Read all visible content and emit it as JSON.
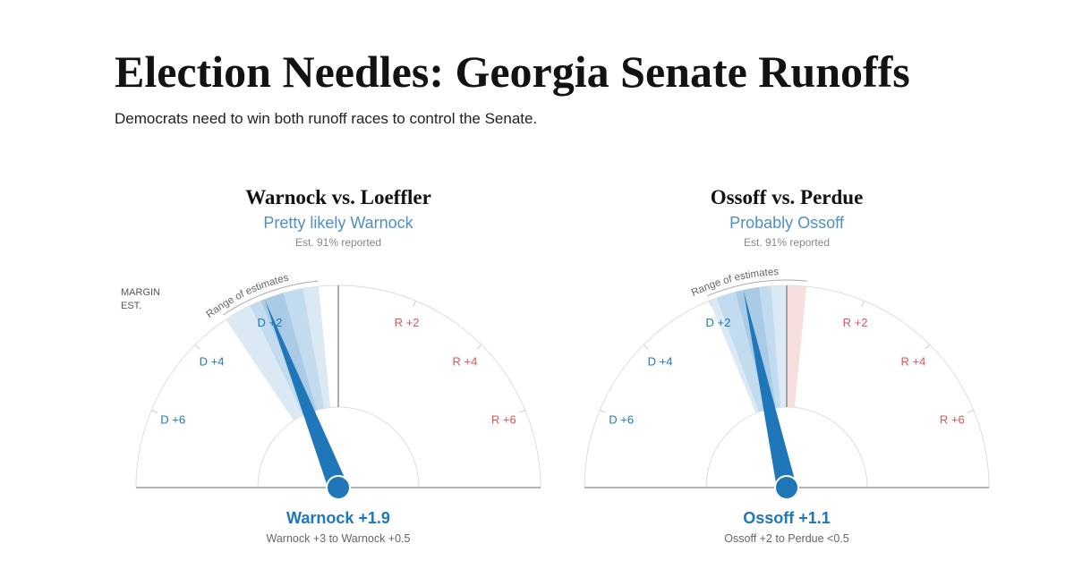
{
  "header": {
    "title": "Election Needles: Georgia Senate Runoffs",
    "subtitle": "Democrats need to win both runoff races to control the Senate."
  },
  "chart_data": [
    {
      "type": "gauge",
      "title": "Warnock vs. Loeffler",
      "subtitle": "Pretty likely Warnock",
      "note": "Est. 91% reported",
      "axis_label": [
        "MARGIN",
        "EST."
      ],
      "range_title": "Range of estimates",
      "xlim": [
        -8,
        8
      ],
      "xticks": [
        {
          "value": -6,
          "label": "D +6"
        },
        {
          "value": -4,
          "label": "D +4"
        },
        {
          "value": -2,
          "label": "D +2"
        },
        {
          "value": 2,
          "label": "R +2"
        },
        {
          "value": 4,
          "label": "R +4"
        },
        {
          "value": 6,
          "label": "R +6"
        }
      ],
      "value": -1.9,
      "value_label": "Warnock +1.9",
      "range": [
        -3,
        -0.5
      ],
      "range_label": "Warnock +3 to Warnock +0.5",
      "inner_bands": [
        [
          -2.3,
          -0.9
        ],
        [
          -2.0,
          -1.4
        ]
      ],
      "d_color": "#1f77b9",
      "r_color": "#d6575b"
    },
    {
      "type": "gauge",
      "title": "Ossoff vs. Perdue",
      "subtitle": "Probably Ossoff",
      "note": "Est. 91% reported",
      "range_title": "Range of estimates",
      "xlim": [
        -8,
        8
      ],
      "xticks": [
        {
          "value": -6,
          "label": "D +6"
        },
        {
          "value": -4,
          "label": "D +4"
        },
        {
          "value": -2,
          "label": "D +2"
        },
        {
          "value": 2,
          "label": "R +2"
        },
        {
          "value": 4,
          "label": "R +4"
        },
        {
          "value": 6,
          "label": "R +6"
        }
      ],
      "value": -1.1,
      "value_label": "Ossoff +1.1",
      "range": [
        -2,
        0.5
      ],
      "range_label": "Ossoff +2 to Perdue <0.5",
      "inner_bands": [
        [
          -1.8,
          -0.4
        ],
        [
          -1.3,
          -0.7
        ]
      ],
      "d_color": "#1f77b9",
      "r_color": "#d6575b"
    }
  ]
}
